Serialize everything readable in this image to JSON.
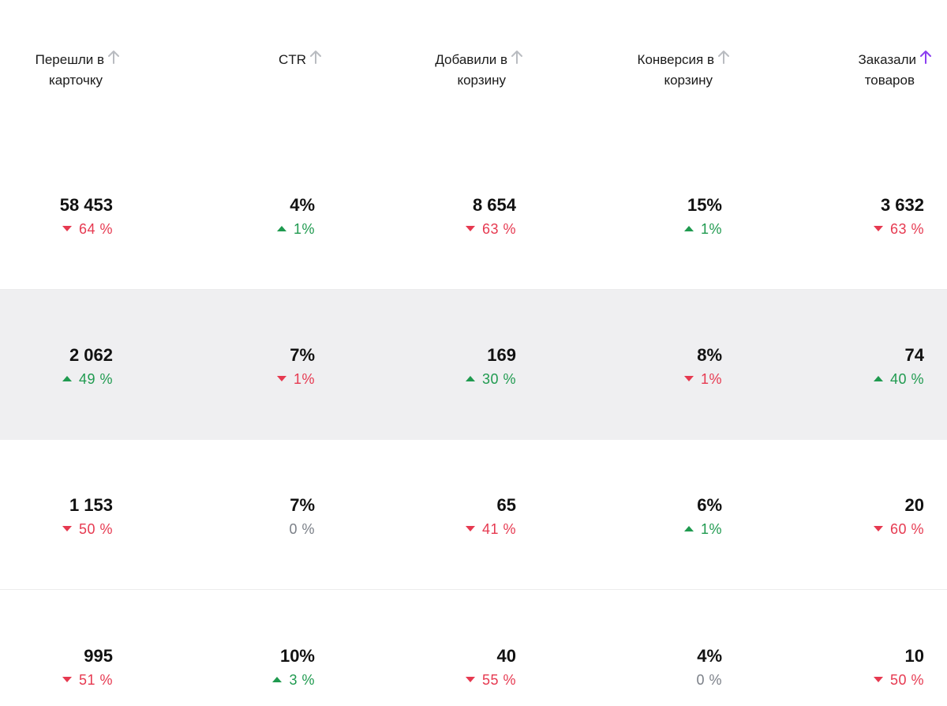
{
  "columns": [
    {
      "line1": "Перешли в",
      "line2": "карточку",
      "arrow_color": "#b9bcc1"
    },
    {
      "line1": "CTR",
      "line2": "",
      "arrow_color": "#b9bcc1"
    },
    {
      "line1": "Добавили в",
      "line2": "корзину",
      "arrow_color": "#b9bcc1"
    },
    {
      "line1": "Конверсия в",
      "line2": "корзину",
      "arrow_color": "#b9bcc1"
    },
    {
      "line1": "Заказали",
      "line2": "товаров",
      "arrow_color": "#8b3ff0"
    }
  ],
  "rows": [
    {
      "cells": [
        {
          "value": "58 453",
          "delta": "64 %",
          "trend": "down"
        },
        {
          "value": "4%",
          "delta": "1%",
          "trend": "up"
        },
        {
          "value": "8 654",
          "delta": "63 %",
          "trend": "down"
        },
        {
          "value": "15%",
          "delta": "1%",
          "trend": "up"
        },
        {
          "value": "3 632",
          "delta": "63 %",
          "trend": "down"
        }
      ]
    },
    {
      "cells": [
        {
          "value": "2 062",
          "delta": "49 %",
          "trend": "up"
        },
        {
          "value": "7%",
          "delta": "1%",
          "trend": "down"
        },
        {
          "value": "169",
          "delta": "30 %",
          "trend": "up"
        },
        {
          "value": "8%",
          "delta": "1%",
          "trend": "down"
        },
        {
          "value": "74",
          "delta": "40 %",
          "trend": "up"
        }
      ]
    },
    {
      "cells": [
        {
          "value": "1 153",
          "delta": "50 %",
          "trend": "down"
        },
        {
          "value": "7%",
          "delta": "0 %",
          "trend": "flat"
        },
        {
          "value": "65",
          "delta": "41 %",
          "trend": "down"
        },
        {
          "value": "6%",
          "delta": "1%",
          "trend": "up"
        },
        {
          "value": "20",
          "delta": "60 %",
          "trend": "down"
        }
      ]
    },
    {
      "cells": [
        {
          "value": "995",
          "delta": "51 %",
          "trend": "down"
        },
        {
          "value": "10%",
          "delta": "3 %",
          "trend": "up"
        },
        {
          "value": "40",
          "delta": "55 %",
          "trend": "down"
        },
        {
          "value": "4%",
          "delta": "0 %",
          "trend": "flat"
        },
        {
          "value": "10",
          "delta": "50 %",
          "trend": "down"
        }
      ]
    }
  ],
  "colors": {
    "down": "#e63950",
    "up": "#1f9a4f",
    "flat": "#7a7f87",
    "highlight_row_bg": "#efeff1",
    "sort_active": "#8b3ff0",
    "sort_inactive": "#b9bcc1"
  }
}
